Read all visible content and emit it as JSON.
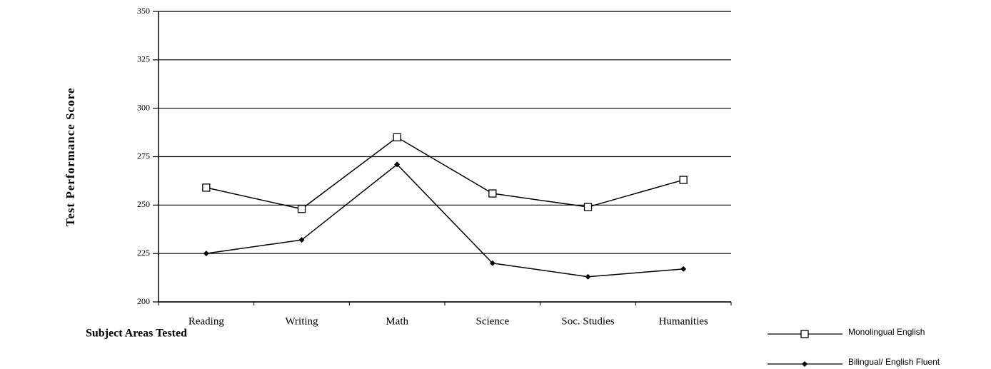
{
  "chart_data": {
    "type": "line",
    "y_axis_label": "Test Performance Score",
    "x_axis_label": "Subject Areas Tested",
    "categories": [
      "Reading",
      "Writing",
      "Math",
      "Science",
      "Soc. Studies",
      "Humanities"
    ],
    "series": [
      {
        "name": "Monolingual English",
        "color": "#000000",
        "marker": "square",
        "values": [
          259,
          248,
          285,
          256,
          249,
          263
        ]
      },
      {
        "name": "Bilingual/ English Fluent",
        "color": "#000000",
        "marker": "diamond",
        "values": [
          225,
          232,
          271,
          220,
          213,
          217
        ]
      }
    ],
    "ylim": [
      200,
      350
    ],
    "yticks": [
      200,
      225,
      250,
      275,
      300,
      325,
      350
    ],
    "grid": true
  }
}
